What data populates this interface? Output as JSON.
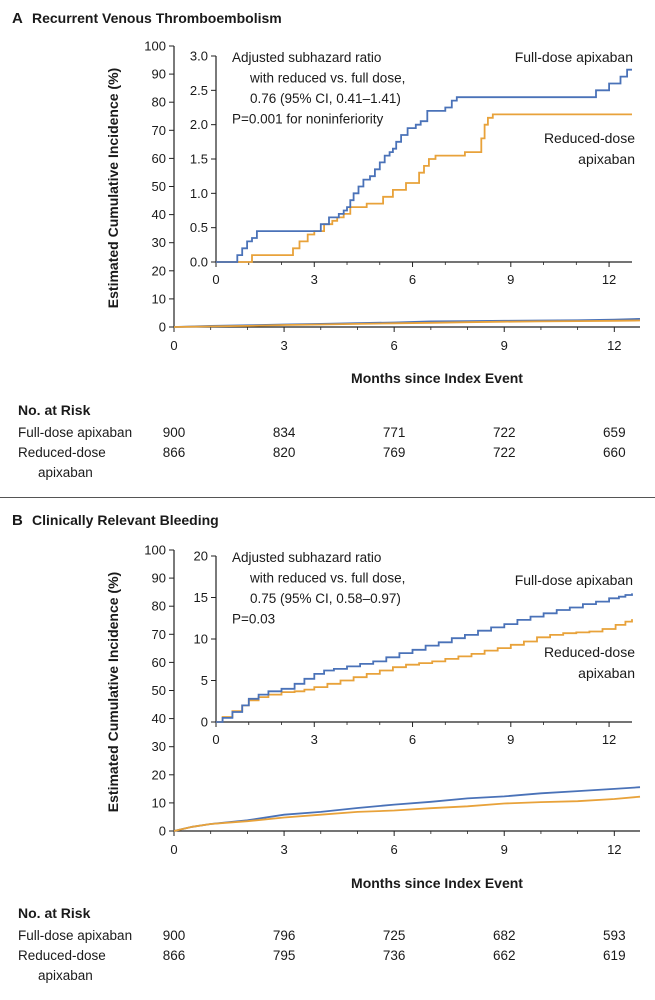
{
  "colors": {
    "full": "#4a72b8",
    "reduced": "#e8a23a",
    "axis": "#222222"
  },
  "chart_data": [
    {
      "type": "line",
      "panel": "A",
      "title": "Recurrent Venous Thromboembolism",
      "xlabel": "Months since Index Event",
      "ylabel": "Estimated Cumulative Incidence (%)",
      "xlim": [
        0,
        12.7
      ],
      "ylim": [
        0,
        100
      ],
      "xticks": [
        0,
        3,
        6,
        9,
        12
      ],
      "yticks": [
        0,
        10,
        20,
        30,
        40,
        50,
        60,
        70,
        80,
        90,
        100
      ],
      "series": [
        {
          "name": "Full-dose apixaban",
          "x": [
            0,
            1,
            2,
            3,
            4,
            5,
            6,
            7,
            8,
            9,
            10,
            11,
            12,
            12.7
          ],
          "y": [
            0,
            0.4,
            0.6,
            0.9,
            1.1,
            1.4,
            1.6,
            2.0,
            2.1,
            2.2,
            2.3,
            2.4,
            2.6,
            2.9
          ]
        },
        {
          "name": "Reduced-dose apixaban",
          "x": [
            0,
            1,
            2,
            3,
            4,
            5,
            6,
            7,
            8,
            9,
            10,
            11,
            12,
            12.7
          ],
          "y": [
            0,
            0.2,
            0.4,
            0.7,
            0.9,
            1.1,
            1.3,
            1.5,
            1.7,
            1.9,
            2.0,
            2.1,
            2.2,
            2.3
          ]
        }
      ],
      "inset": {
        "xlim": [
          0,
          12.7
        ],
        "ylim": [
          0,
          3.0
        ],
        "xticks": [
          0,
          3,
          6,
          9,
          12
        ],
        "yticks": [
          "0.0",
          "0.5",
          "1.0",
          "1.5",
          "2.0",
          "2.5",
          "3.0"
        ],
        "series": [
          {
            "name": "Full-dose apixaban",
            "x": [
              0,
              0.5,
              0.65,
              0.8,
              0.95,
              1.1,
              1.25,
              3.0,
              3.2,
              3.45,
              3.6,
              3.75,
              3.9,
              4.0,
              4.1,
              4.2,
              4.35,
              4.5,
              4.7,
              4.85,
              5.0,
              5.15,
              5.3,
              5.4,
              5.5,
              5.65,
              5.85,
              6.1,
              6.25,
              6.45,
              7.0,
              7.2,
              7.35,
              11.2,
              11.6,
              12.0,
              12.35,
              12.55,
              12.7
            ],
            "y": [
              0,
              0,
              0.1,
              0.2,
              0.3,
              0.35,
              0.45,
              0.45,
              0.55,
              0.65,
              0.65,
              0.7,
              0.75,
              0.8,
              0.9,
              1.0,
              1.1,
              1.2,
              1.25,
              1.35,
              1.45,
              1.55,
              1.6,
              1.65,
              1.75,
              1.85,
              1.95,
              2.0,
              2.05,
              2.2,
              2.25,
              2.35,
              2.4,
              2.4,
              2.5,
              2.6,
              2.7,
              2.8,
              2.8
            ]
          },
          {
            "name": "Reduced-dose apixaban",
            "x": [
              0,
              1.0,
              1.1,
              2.35,
              2.55,
              2.8,
              3.0,
              3.3,
              3.55,
              3.7,
              3.9,
              4.1,
              4.6,
              5.1,
              5.4,
              5.8,
              6.2,
              6.35,
              6.5,
              6.7,
              7.6,
              8.1,
              8.2,
              8.3,
              8.45,
              12.7
            ],
            "y": [
              0,
              0,
              0.1,
              0.2,
              0.3,
              0.4,
              0.45,
              0.55,
              0.6,
              0.65,
              0.7,
              0.8,
              0.85,
              0.95,
              1.05,
              1.15,
              1.3,
              1.4,
              1.5,
              1.55,
              1.6,
              1.8,
              2.0,
              2.1,
              2.15,
              2.15
            ]
          }
        ]
      },
      "annotation": [
        "Adjusted subhazard ratio",
        "with reduced vs. full dose,",
        "0.76 (95% CI, 0.41–1.41)",
        "P=0.001 for noninferiority"
      ],
      "legend": {
        "full": "Full-dose apixaban",
        "reduced_line1": "Reduced-dose",
        "reduced_line2": "apixaban"
      },
      "risk_table": {
        "heading": "No. at Risk",
        "rows": [
          {
            "label": "Full-dose apixaban",
            "values": [
              900,
              834,
              771,
              722,
              659
            ]
          },
          {
            "label": "Reduced-dose",
            "label2": "apixaban",
            "values": [
              866,
              820,
              769,
              722,
              660
            ]
          }
        ]
      }
    },
    {
      "type": "line",
      "panel": "B",
      "title": "Clinically Relevant Bleeding",
      "xlabel": "Months since Index Event",
      "ylabel": "Estimated Cumulative Incidence (%)",
      "xlim": [
        0,
        12.7
      ],
      "ylim": [
        0,
        100
      ],
      "xticks": [
        0,
        3,
        6,
        9,
        12
      ],
      "yticks": [
        0,
        10,
        20,
        30,
        40,
        50,
        60,
        70,
        80,
        90,
        100
      ],
      "series": [
        {
          "name": "Full-dose apixaban",
          "x": [
            0,
            0.5,
            1,
            2,
            3,
            4,
            5,
            6,
            7,
            8,
            9,
            10,
            11,
            12,
            12.7
          ],
          "y": [
            0,
            1.5,
            2.5,
            3.8,
            5.8,
            6.8,
            8.2,
            9.4,
            10.4,
            11.6,
            12.3,
            13.4,
            14.2,
            15.0,
            15.6
          ]
        },
        {
          "name": "Reduced-dose apixaban",
          "x": [
            0,
            0.5,
            1,
            2,
            3,
            4,
            5,
            6,
            7,
            8,
            9,
            10,
            11,
            12,
            12.7
          ],
          "y": [
            0,
            1.5,
            2.5,
            3.5,
            4.8,
            5.8,
            6.8,
            7.3,
            8.1,
            8.8,
            9.8,
            10.3,
            10.6,
            11.4,
            12.2
          ]
        }
      ],
      "inset": {
        "xlim": [
          0,
          12.7
        ],
        "ylim": [
          0,
          20
        ],
        "xticks": [
          0,
          3,
          6,
          9,
          12
        ],
        "yticks": [
          "0",
          "5",
          "10",
          "15",
          "20"
        ],
        "series": [
          {
            "name": "Full-dose apixaban",
            "x": [
              0,
              0.2,
              0.5,
              0.8,
              1.0,
              1.3,
              1.6,
              2.0,
              2.4,
              2.7,
              3.0,
              3.3,
              3.6,
              4.0,
              4.4,
              4.8,
              5.2,
              5.6,
              6.0,
              6.4,
              6.8,
              7.2,
              7.6,
              8.0,
              8.4,
              8.8,
              9.2,
              9.6,
              10.0,
              10.4,
              10.8,
              11.2,
              11.6,
              12.0,
              12.3,
              12.5,
              12.7
            ],
            "y": [
              0,
              0.5,
              1.2,
              2.0,
              2.8,
              3.3,
              3.7,
              4.0,
              4.6,
              5.2,
              5.8,
              6.2,
              6.4,
              6.7,
              7.0,
              7.3,
              7.8,
              8.3,
              8.7,
              9.2,
              9.6,
              10.1,
              10.5,
              11.0,
              11.4,
              11.8,
              12.3,
              12.7,
              13.1,
              13.5,
              13.8,
              14.2,
              14.5,
              14.9,
              15.1,
              15.3,
              15.5
            ]
          },
          {
            "name": "Reduced-dose apixaban",
            "x": [
              0,
              0.2,
              0.5,
              0.8,
              1.0,
              1.3,
              1.6,
              2.0,
              2.4,
              2.7,
              3.0,
              3.4,
              3.8,
              4.2,
              4.6,
              5.0,
              5.4,
              5.8,
              6.2,
              6.6,
              7.0,
              7.4,
              7.8,
              8.2,
              8.6,
              9.0,
              9.4,
              9.8,
              10.2,
              10.6,
              11.0,
              11.4,
              11.8,
              12.2,
              12.5,
              12.7
            ],
            "y": [
              0,
              0.6,
              1.3,
              2.0,
              2.6,
              3.0,
              3.3,
              3.6,
              3.7,
              3.9,
              4.2,
              4.6,
              5.0,
              5.4,
              5.8,
              6.2,
              6.6,
              6.9,
              7.1,
              7.3,
              7.6,
              7.9,
              8.2,
              8.6,
              8.9,
              9.3,
              9.7,
              10.2,
              10.5,
              10.7,
              10.8,
              10.9,
              11.2,
              11.7,
              12.1,
              12.4
            ]
          }
        ]
      },
      "annotation": [
        "Adjusted subhazard ratio",
        "with reduced vs. full dose,",
        "0.75 (95% CI, 0.58–0.97)",
        "P=0.03"
      ],
      "legend": {
        "full": "Full-dose apixaban",
        "reduced_line1": "Reduced-dose",
        "reduced_line2": "apixaban"
      },
      "risk_table": {
        "heading": "No. at Risk",
        "rows": [
          {
            "label": "Full-dose apixaban",
            "values": [
              900,
              796,
              725,
              682,
              593
            ]
          },
          {
            "label": "Reduced-dose",
            "label2": "apixaban",
            "values": [
              866,
              795,
              736,
              662,
              619
            ]
          }
        ]
      }
    }
  ]
}
